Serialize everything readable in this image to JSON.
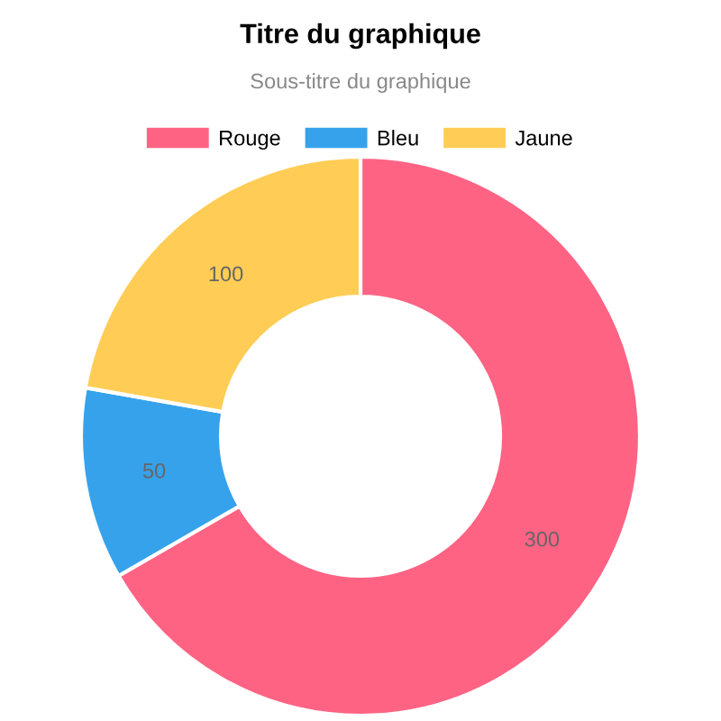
{
  "chart_data": {
    "type": "donut",
    "title": "Titre du graphique",
    "subtitle": "Sous-titre du graphique",
    "categories": [
      "Rouge",
      "Bleu",
      "Jaune"
    ],
    "values": [
      300,
      50,
      100
    ],
    "colors": [
      "#ff6384",
      "#36a2eb",
      "#ffcd56"
    ],
    "data_labels": true,
    "legend": "top"
  }
}
